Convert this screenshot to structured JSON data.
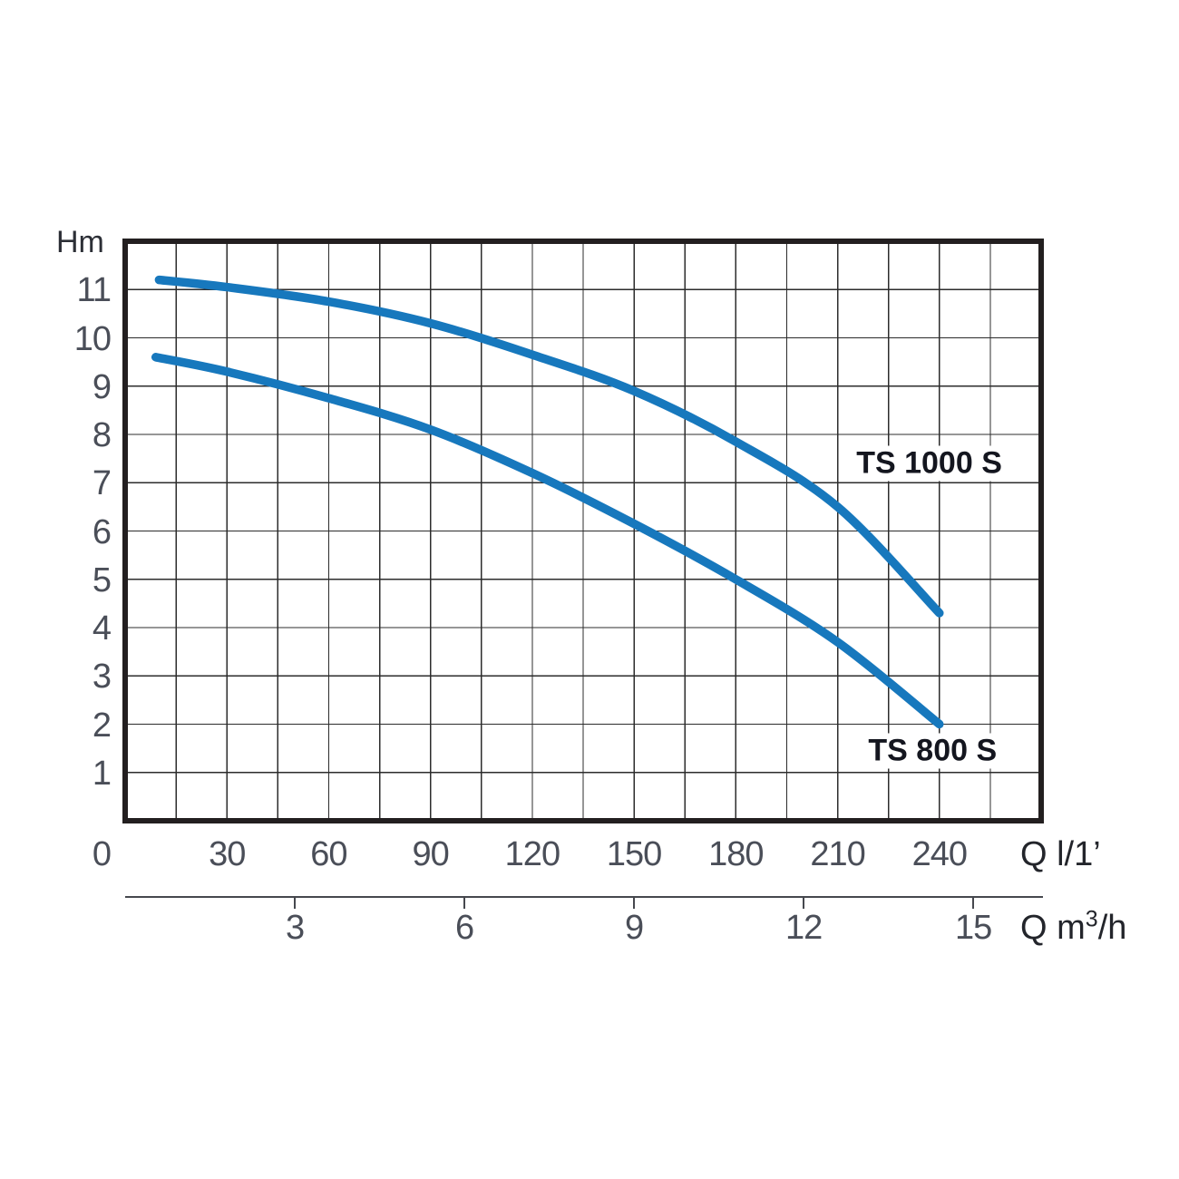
{
  "colors": {
    "curve": "#1778bd",
    "grid_line": "#2c2c2c",
    "plot_border": "#231f20",
    "tick_text": "#4a4e58",
    "unit_text": "#23252b",
    "curve_label_text": "#14161f",
    "secondary_axis": "#46484e"
  },
  "units": {
    "head": "Hm",
    "flow_lmin": "Q l/1’",
    "flow_m3h_prefix": "Q m",
    "flow_m3h_sup": "3",
    "flow_m3h_suffix": "/h"
  },
  "chart_data": {
    "type": "line",
    "title": "",
    "grid": true,
    "x_axis": {
      "label": "Q l/1’",
      "range": [
        0,
        270
      ],
      "gridline_step": 15,
      "tick_labels": [
        0,
        30,
        60,
        90,
        120,
        150,
        180,
        210,
        240
      ]
    },
    "x_axis_secondary": {
      "label": "Q m³/h",
      "ticks": [
        3,
        6,
        9,
        12,
        15
      ],
      "lmin_per_m3h": 16.6667
    },
    "y_axis": {
      "label": "Hm",
      "range": [
        0,
        12
      ],
      "gridline_step": 1,
      "tick_labels": [
        11,
        10,
        9,
        8,
        7,
        6,
        5,
        4,
        3,
        2,
        1
      ]
    },
    "series": [
      {
        "name": "TS 1000 S",
        "points": [
          [
            10,
            11.2
          ],
          [
            30,
            11.05
          ],
          [
            60,
            10.75
          ],
          [
            90,
            10.3
          ],
          [
            120,
            9.65
          ],
          [
            150,
            8.9
          ],
          [
            180,
            7.85
          ],
          [
            210,
            6.5
          ],
          [
            240,
            4.3
          ]
        ],
        "label_anchor_qh": [
          237,
          7.4
        ]
      },
      {
        "name": "TS 800 S",
        "points": [
          [
            9,
            9.6
          ],
          [
            30,
            9.3
          ],
          [
            60,
            8.75
          ],
          [
            90,
            8.1
          ],
          [
            120,
            7.2
          ],
          [
            150,
            6.15
          ],
          [
            180,
            5.0
          ],
          [
            210,
            3.7
          ],
          [
            240,
            2.0
          ]
        ],
        "label_anchor_qh": [
          238,
          1.45
        ]
      }
    ]
  }
}
